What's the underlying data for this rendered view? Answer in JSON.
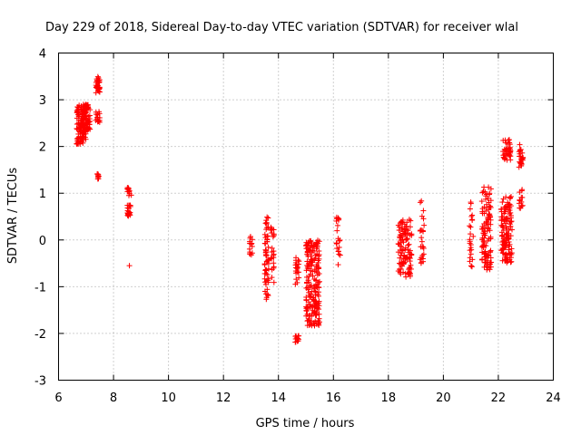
{
  "chart_data": {
    "type": "scatter",
    "title": "Day 229 of 2018, Sidereal Day-to-day VTEC variation (SDTVAR) for receiver wlal",
    "xlabel": "GPS time / hours",
    "ylabel": "SDTVAR / TECUs",
    "xlim": [
      6,
      24
    ],
    "ylim": [
      -3,
      4
    ],
    "xticks": [
      6,
      8,
      10,
      12,
      14,
      16,
      18,
      20,
      22,
      24
    ],
    "yticks": [
      -3,
      -2,
      -1,
      0,
      1,
      2,
      3,
      4
    ],
    "grid": true,
    "marker": "+",
    "marker_color": "#ff0000",
    "clusters": [
      {
        "x": [
          6.65,
          7.0
        ],
        "y": [
          2.05,
          2.9
        ],
        "n": 120
      },
      {
        "x": [
          6.9,
          7.15
        ],
        "y": [
          2.3,
          2.9
        ],
        "n": 60
      },
      {
        "x": [
          7.35,
          7.5
        ],
        "y": [
          3.15,
          3.5
        ],
        "n": 30
      },
      {
        "x": [
          7.35,
          7.5
        ],
        "y": [
          2.5,
          2.75
        ],
        "n": 15
      },
      {
        "x": [
          7.4,
          7.5
        ],
        "y": [
          1.3,
          1.42
        ],
        "n": 10
      },
      {
        "x": [
          8.5,
          8.65
        ],
        "y": [
          0.95,
          1.12
        ],
        "n": 12
      },
      {
        "x": [
          8.5,
          8.65
        ],
        "y": [
          0.5,
          0.75
        ],
        "n": 20
      },
      {
        "x": [
          8.55,
          8.6
        ],
        "y": [
          -0.56,
          -0.54
        ],
        "n": 1
      },
      {
        "x": [
          12.95,
          13.05
        ],
        "y": [
          -0.35,
          0.15
        ],
        "n": 15
      },
      {
        "x": [
          13.5,
          13.65
        ],
        "y": [
          -1.3,
          0.5
        ],
        "n": 60
      },
      {
        "x": [
          13.7,
          13.85
        ],
        "y": [
          -1.0,
          0.3
        ],
        "n": 25
      },
      {
        "x": [
          14.6,
          14.75
        ],
        "y": [
          -2.2,
          -2.05
        ],
        "n": 12
      },
      {
        "x": [
          14.6,
          14.75
        ],
        "y": [
          -0.95,
          -0.3
        ],
        "n": 20
      },
      {
        "x": [
          15.0,
          15.5
        ],
        "y": [
          -1.85,
          0.0
        ],
        "n": 200
      },
      {
        "x": [
          16.1,
          16.25
        ],
        "y": [
          -0.55,
          0.5
        ],
        "n": 20
      },
      {
        "x": [
          18.35,
          18.85
        ],
        "y": [
          -0.8,
          0.45
        ],
        "n": 110
      },
      {
        "x": [
          19.15,
          19.3
        ],
        "y": [
          -0.6,
          0.85
        ],
        "n": 25
      },
      {
        "x": [
          20.95,
          21.1
        ],
        "y": [
          -0.6,
          0.9
        ],
        "n": 25
      },
      {
        "x": [
          21.4,
          21.75
        ],
        "y": [
          -0.65,
          1.15
        ],
        "n": 110
      },
      {
        "x": [
          22.1,
          22.5
        ],
        "y": [
          -0.5,
          0.95
        ],
        "n": 130
      },
      {
        "x": [
          22.15,
          22.45
        ],
        "y": [
          1.7,
          2.15
        ],
        "n": 40
      },
      {
        "x": [
          22.75,
          22.9
        ],
        "y": [
          1.55,
          2.05
        ],
        "n": 25
      },
      {
        "x": [
          22.75,
          22.9
        ],
        "y": [
          0.65,
          1.1
        ],
        "n": 15
      }
    ]
  }
}
